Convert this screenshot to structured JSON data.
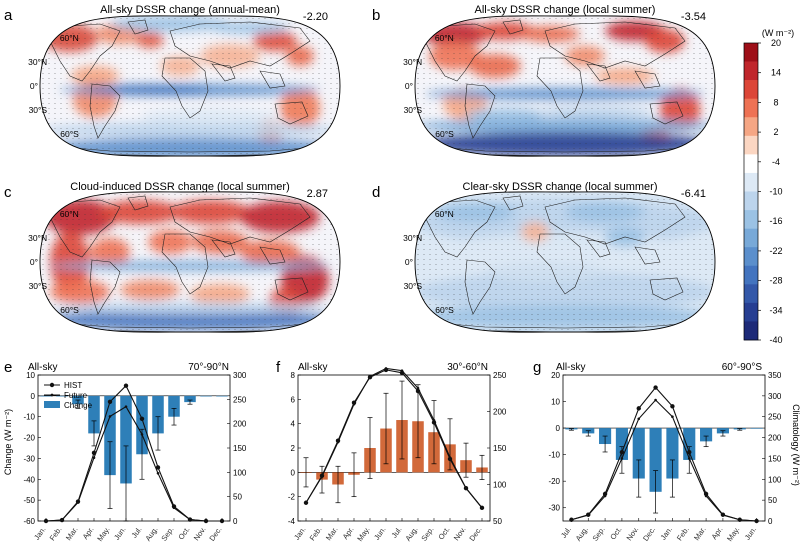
{
  "maps": [
    {
      "letter": "a",
      "title": "All-sky DSSR change (annual-mean)",
      "value": "-2.20",
      "pattern": "a"
    },
    {
      "letter": "b",
      "title": "All-sky DSSR change (local summer)",
      "value": "-3.54",
      "pattern": "b"
    },
    {
      "letter": "c",
      "title": "Cloud-induced DSSR change (local summer)",
      "value": "2.87",
      "pattern": "c"
    },
    {
      "letter": "d",
      "title": "Clear-sky DSSR change (local summer)",
      "value": "-6.41",
      "pattern": "d"
    }
  ],
  "lat_labels": [
    "60°N",
    "30°N",
    "0°",
    "30°S",
    "60°S"
  ],
  "colorbar": {
    "unit": "(W m⁻²)",
    "ticks": [
      "20",
      "14",
      "8",
      "2",
      "-4",
      "-10",
      "-16",
      "-22",
      "-28",
      "-34",
      "-40"
    ],
    "colors": [
      "#9e0f18",
      "#c0262c",
      "#dc4637",
      "#ee7254",
      "#f5a684",
      "#fbd6c2",
      "#ffffff",
      "#dde9f5",
      "#bcd4ec",
      "#9bc2e4",
      "#78a9d8",
      "#5b8fcc",
      "#4374bf",
      "#3358a9",
      "#263e92",
      "#1d2a78"
    ]
  },
  "chart_data": [
    {
      "type": "bar",
      "panel": "e",
      "sky_label": "All-sky",
      "region": "70°-90°N",
      "categories": [
        "Jan.",
        "Feb.",
        "Mar.",
        "Apr.",
        "May.",
        "Jun.",
        "Jul.",
        "Aug.",
        "Sep.",
        "Oct.",
        "Nov.",
        "Dec."
      ],
      "ylabel": "Change (W m⁻²)",
      "ylim": [
        -60,
        10
      ],
      "yticks": [
        10,
        0,
        -10,
        -20,
        -30,
        -40,
        -50,
        -60
      ],
      "y2lim": [
        0,
        300
      ],
      "y2ticks": [
        300,
        250,
        200,
        150,
        100,
        50,
        0
      ],
      "bar_color": "#2e7fb8",
      "series": [
        {
          "name": "Change",
          "kind": "bar",
          "values": [
            0,
            0,
            -4,
            -18,
            -38,
            -42,
            -28,
            -18,
            -10,
            -3,
            0,
            0
          ],
          "errors": [
            0,
            0,
            2,
            6,
            16,
            18,
            12,
            8,
            4,
            1,
            0,
            0
          ]
        },
        {
          "name": "HIST",
          "kind": "line",
          "axis": "right",
          "values": [
            0,
            2,
            40,
            140,
            245,
            278,
            210,
            110,
            30,
            3,
            0,
            0
          ]
        },
        {
          "name": "Future",
          "kind": "line",
          "axis": "right",
          "values": [
            0,
            2,
            38,
            130,
            215,
            235,
            178,
            98,
            27,
            3,
            0,
            0
          ]
        }
      ],
      "legend": [
        "HIST",
        "Future",
        "Change"
      ]
    },
    {
      "type": "bar",
      "panel": "f",
      "sky_label": "All-sky",
      "region": "30°-60°N",
      "categories": [
        "Jan.",
        "Feb.",
        "Mar.",
        "Apr.",
        "May.",
        "Jun.",
        "Jul.",
        "Aug.",
        "Sep.",
        "Oct.",
        "Nov.",
        "Dec."
      ],
      "ylim": [
        -4,
        8
      ],
      "yticks": [
        8,
        6,
        4,
        2,
        0,
        -2,
        -4
      ],
      "y2lim": [
        50,
        250
      ],
      "y2ticks": [
        250,
        200,
        150,
        100,
        50
      ],
      "bar_color": "#d2693a",
      "series": [
        {
          "name": "Change",
          "kind": "bar",
          "values": [
            0,
            -0.6,
            -1.0,
            -0.2,
            2.0,
            3.6,
            4.3,
            4.2,
            3.3,
            2.3,
            1.0,
            0.4
          ],
          "errors": [
            1.2,
            1.1,
            1.5,
            1.8,
            2.5,
            2.9,
            3.2,
            3.0,
            2.6,
            2.1,
            1.4,
            1.0
          ]
        },
        {
          "name": "HIST",
          "kind": "line",
          "axis": "right",
          "values": [
            75,
            112,
            160,
            212,
            247,
            257,
            253,
            228,
            185,
            135,
            95,
            68
          ]
        },
        {
          "name": "Future",
          "kind": "line",
          "axis": "right",
          "values": [
            75,
            111,
            158,
            210,
            248,
            259,
            256,
            232,
            188,
            137,
            95,
            68
          ]
        }
      ]
    },
    {
      "type": "bar",
      "panel": "g",
      "sky_label": "All-sky",
      "region": "60°-90°S",
      "categories": [
        "Jul.",
        "Aug.",
        "Sep.",
        "Oct.",
        "Nov.",
        "Dec.",
        "Jan.",
        "Feb.",
        "Mar.",
        "Apr.",
        "May.",
        "Jun."
      ],
      "y2label": "Climatology (W m⁻²)",
      "ylim": [
        -35,
        20
      ],
      "yticks": [
        20,
        10,
        0,
        -10,
        -20,
        -30
      ],
      "y2lim": [
        0,
        350
      ],
      "y2ticks": [
        350,
        300,
        250,
        200,
        150,
        100,
        50,
        0
      ],
      "bar_color": "#2e7fb8",
      "series": [
        {
          "name": "Change",
          "kind": "bar",
          "values": [
            -0.5,
            -2,
            -6,
            -12,
            -19,
            -24,
            -19,
            -12,
            -5,
            -2,
            -0.5,
            0
          ],
          "errors": [
            0.3,
            1,
            3,
            5,
            7,
            8,
            7,
            5,
            2,
            1,
            0.3,
            0
          ]
        },
        {
          "name": "HIST",
          "kind": "line",
          "axis": "right",
          "values": [
            3,
            15,
            65,
            165,
            270,
            320,
            275,
            165,
            65,
            15,
            3,
            0
          ]
        },
        {
          "name": "Future",
          "kind": "line",
          "axis": "right",
          "values": [
            3,
            14,
            60,
            150,
            245,
            290,
            250,
            150,
            60,
            14,
            3,
            0
          ]
        }
      ]
    }
  ]
}
